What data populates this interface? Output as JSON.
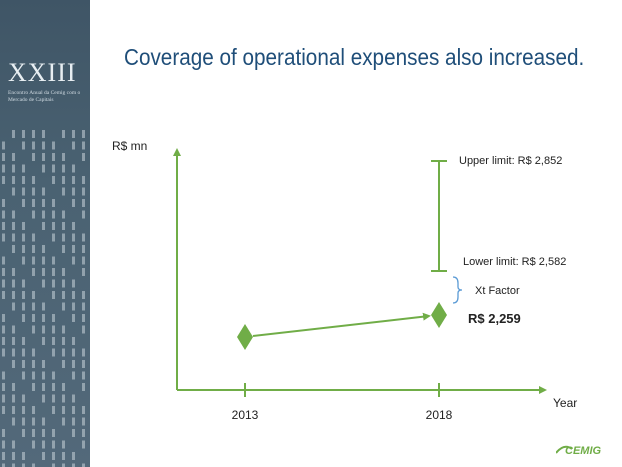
{
  "slide": {
    "title": "Coverage of operational expenses also increased.",
    "event_number": "XXIII",
    "event_subtitle": "Encontro Anual da Cemig com o Mercado de Capitais",
    "logo_text": "CEMIG"
  },
  "colors": {
    "accent": "#70ad47",
    "title": "#1f4e79",
    "brace": "#5b9bd5",
    "sidebar": "#4a6272"
  },
  "chart_data": {
    "type": "line",
    "ylabel": "R$ mn",
    "xlabel": "Year",
    "categories": [
      "2013",
      "2018"
    ],
    "series": [
      {
        "values": [
          null,
          2259
        ]
      }
    ],
    "points": [
      {
        "x": "2013",
        "label": ""
      },
      {
        "x": "2018",
        "y": 2259,
        "label": "R$ 2,259"
      }
    ],
    "range": {
      "x": "2018",
      "upper": 2852,
      "lower": 2582,
      "upper_label": "Upper limit: R$ 2,852",
      "lower_label": "Lower limit: R$ 2,582"
    },
    "brace_label": "Xt Factor",
    "grid": false
  }
}
